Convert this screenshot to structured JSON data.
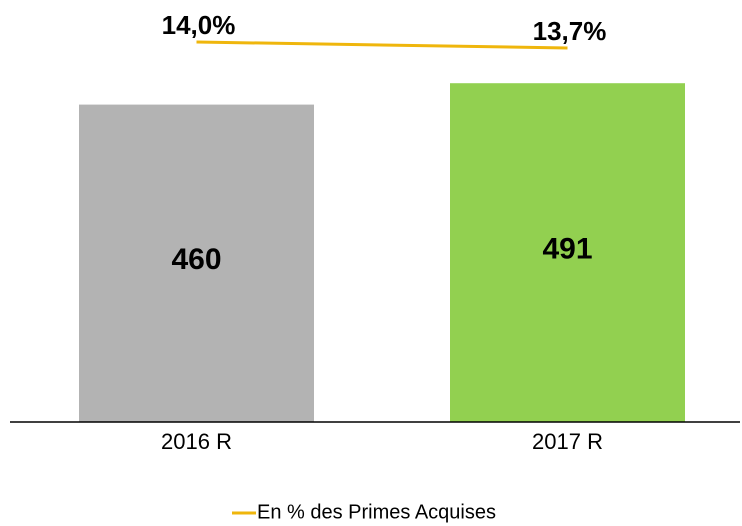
{
  "chart_data": {
    "type": "bar",
    "categories": [
      "2016 R",
      "2017 R"
    ],
    "series": [
      {
        "values": [
          460,
          491
        ],
        "colors": [
          "#b3b3b3",
          "#92d050"
        ]
      },
      {
        "name": "En % des Primes Acquises",
        "type": "line",
        "axis": "y2",
        "color": "#efb60c",
        "values": [
          14.0,
          13.7
        ],
        "value_labels": [
          "14,0%",
          "13,7%"
        ]
      }
    ],
    "ylim": [
      0,
      600
    ],
    "y2lim": [
      -5,
      15.7
    ]
  }
}
